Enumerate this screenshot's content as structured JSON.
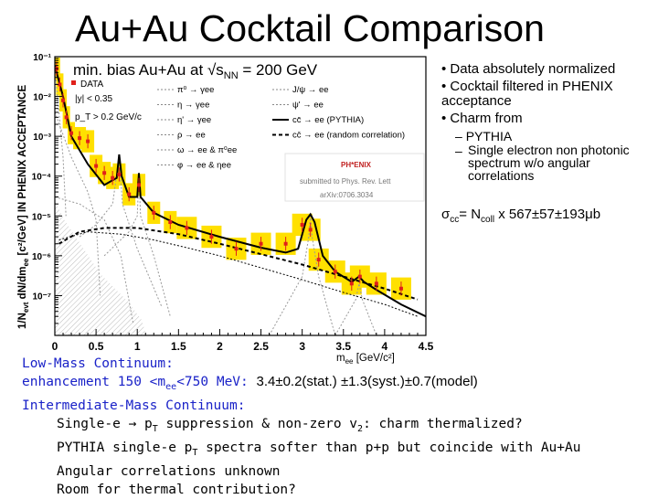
{
  "slide": {
    "title": "Au+Au Cocktail Comparison"
  },
  "figure": {
    "header": "min. bias Au+Au at √s",
    "header_sub": "NN",
    "header_tail": " = 200 GeV",
    "y_axis_label": "1/N",
    "y_axis_label_sub": "evt",
    "y_axis_label_tail": " dN/dm",
    "y_axis_label_sub2": "ee",
    "y_axis_label_tail2": " [c²/GeV] IN PHENIX ACCEPTANCE",
    "x_axis_label": "m",
    "x_axis_label_sub": "ee",
    "x_axis_label_tail": " [GeV/c²]",
    "legend_left": [
      "DATA",
      "|y| < 0.35",
      "p_T > 0.2 GeV/c"
    ],
    "legend_right": [
      "π⁰ → γee",
      "η → γee",
      "η' → γee",
      "ρ → ee",
      "ω → ee & π⁰ee",
      "φ → ee & ηee",
      "J/ψ → ee",
      "ψ' → ee",
      "cc̄ → ee (PYTHIA)",
      "cc̄ → ee (random correlation)"
    ],
    "stamp": {
      "line1": "submitted to Phys. Rev. Lett",
      "line2": "arXiv:0706.3034",
      "logo": "PH*ENIX"
    },
    "colors": {
      "data": "#e0201a",
      "band": "#ffe000",
      "cocktail": "#000000",
      "charm_random": "#000000",
      "components": "#999999"
    }
  },
  "chart_data": {
    "type": "scatter",
    "xlabel": "m_ee [GeV/c²]",
    "ylabel": "1/N_evt dN/dm_ee [c²/GeV] IN PHENIX ACCEPTANCE",
    "xlim": [
      0,
      4.5
    ],
    "ylim": [
      1e-08,
      0.1
    ],
    "y_scale": "log",
    "x_ticks": [
      "0",
      "0.5",
      "1",
      "1.5",
      "2",
      "2.5",
      "3",
      "3.5",
      "4",
      "4.5"
    ],
    "y_ticks": [
      "10⁻¹",
      "10⁻²",
      "10⁻³",
      "10⁻⁴",
      "10⁻⁵",
      "10⁻⁶",
      "10⁻⁷"
    ],
    "series": [
      {
        "name": "DATA",
        "x": [
          0.02,
          0.06,
          0.1,
          0.14,
          0.2,
          0.3,
          0.4,
          0.5,
          0.6,
          0.7,
          0.78,
          0.9,
          1.02,
          1.2,
          1.4,
          1.6,
          1.9,
          2.2,
          2.5,
          2.8,
          3.0,
          3.1,
          3.2,
          3.4,
          3.6,
          3.7,
          3.9,
          4.2
        ],
        "y": [
          0.05,
          0.02,
          0.008,
          0.003,
          0.0012,
          0.0009,
          0.00075,
          0.00018,
          0.00012,
          9e-05,
          0.00011,
          3.5e-05,
          6e-05,
          1.2e-05,
          7e-06,
          5e-06,
          3e-06,
          1.5e-06,
          2e-06,
          2e-06,
          6e-06,
          4.5e-06,
          8e-07,
          4e-07,
          2e-07,
          3e-07,
          2e-07,
          1.5e-07
        ]
      },
      {
        "name": "cocktail sum",
        "x": [
          0.0,
          0.1,
          0.2,
          0.4,
          0.6,
          0.75,
          0.78,
          0.81,
          0.9,
          1.0,
          1.02,
          1.04,
          1.2,
          1.5,
          2.0,
          2.5,
          2.8,
          2.95,
          3.05,
          3.1,
          3.15,
          3.25,
          3.4,
          3.6,
          3.69,
          3.75,
          3.9,
          4.2,
          4.5
        ],
        "y": [
          0.06,
          0.01,
          0.001,
          0.0002,
          6e-05,
          9e-05,
          0.00035,
          0.0001,
          3e-05,
          3e-05,
          0.00012,
          3e-05,
          1.2e-05,
          6e-06,
          3e-06,
          1.6e-06,
          1.2e-06,
          1.5e-06,
          8e-06,
          1.1e-05,
          7e-06,
          1e-06,
          4e-07,
          2.2e-07,
          3e-07,
          2.2e-07,
          1.4e-07,
          6e-08,
          3e-08
        ]
      },
      {
        "name": "cc̄ → ee (random correlation)",
        "x": [
          0.05,
          0.3,
          0.6,
          1.0,
          1.5,
          2.0,
          2.5,
          3.0,
          3.5,
          4.0,
          4.4
        ],
        "y": [
          2e-06,
          4e-06,
          5e-06,
          5e-06,
          3.5e-06,
          2e-06,
          1.1e-06,
          6e-07,
          3e-07,
          1.5e-07,
          8e-08
        ]
      }
    ]
  },
  "bullets": [
    {
      "text": "• Data absolutely normalized"
    },
    {
      "text": "• Cocktail filtered in PHENIX acceptance"
    },
    {
      "text": "• Charm from"
    }
  ],
  "sub_bullets": [
    {
      "dash": "–",
      "text": "PYTHIA"
    },
    {
      "dash": "–",
      "text": "Single electron non photonic spectrum w/o angular correlations"
    }
  ],
  "sigma_line": {
    "sigma": "σ",
    "sub": "cc",
    "tail": "= N",
    "sub2": "coll",
    "tail2": " x 567±57±193μb"
  },
  "body": {
    "lmc_header": "Low-Mass Continuum:",
    "lmc_prefix": "enhancement 150 <m",
    "lmc_sub": "ee",
    "lmc_mid": "<750 MeV: ",
    "lmc_values": "3.4±0.2(stat.) ±1.3(syst.)±0.7(model)",
    "imc_header": "Intermediate-Mass Continuum:",
    "imc_line1a": "Single-e → p",
    "imc_line1a_sub": "T",
    "imc_line1b": " suppression & non-zero v",
    "imc_line1b_sub": "2",
    "imc_line1c": ": charm thermalized?",
    "imc_line2a": "PYTHIA single-e p",
    "imc_line2a_sub": "T",
    "imc_line2b": " spectra softer than p+p but coincide with Au+Au",
    "imc_line3": "Angular correlations unknown",
    "imc_line4": "Room for thermal contribution?"
  }
}
